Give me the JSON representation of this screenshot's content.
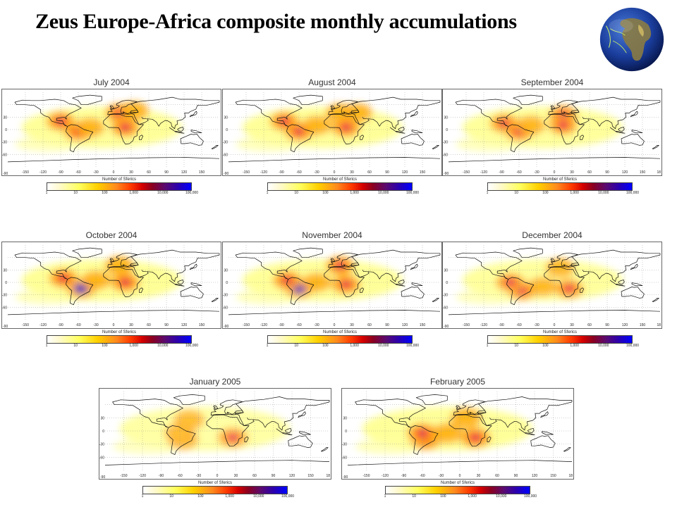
{
  "slide": {
    "title": "Zeus Europe-Africa composite monthly accumulations"
  },
  "globe": {
    "name": "earth-globe"
  },
  "colorbar": {
    "label": "Number of Sferics",
    "ticks": [
      "1",
      "10",
      "100",
      "1,000",
      "10,000",
      "100,000"
    ],
    "colors": [
      "#ffffff",
      "#ffff60",
      "#ffd000",
      "#ff8a1e",
      "#ff3a00",
      "#d40000",
      "#5a0a70",
      "#0000ff"
    ]
  },
  "axes": {
    "x_ticks": [
      "-150",
      "-120",
      "-90",
      "-60",
      "-30",
      "0",
      "30",
      "60",
      "90",
      "120",
      "150"
    ],
    "y_ticks": [
      "30",
      "0",
      "-30",
      "-60"
    ],
    "corner_label": "-90",
    "end_label": "18"
  },
  "chart_data": [
    {
      "type": "heatmap",
      "title": "July 2004",
      "intensity": 0.85,
      "hotspots": [
        [
          -90,
          20,
          "high"
        ],
        [
          -60,
          -5,
          "high"
        ],
        [
          10,
          40,
          "high"
        ],
        [
          20,
          5,
          "high"
        ],
        [
          35,
          45,
          "mid"
        ],
        [
          -40,
          5,
          "mid"
        ]
      ]
    },
    {
      "type": "heatmap",
      "title": "August 2004",
      "intensity": 0.85,
      "hotspots": [
        [
          -85,
          20,
          "high"
        ],
        [
          -60,
          -5,
          "high"
        ],
        [
          10,
          40,
          "mid"
        ],
        [
          20,
          5,
          "high"
        ],
        [
          40,
          40,
          "mid"
        ],
        [
          -30,
          10,
          "mid"
        ]
      ]
    },
    {
      "type": "heatmap",
      "title": "September 2004",
      "intensity": 0.8,
      "hotspots": [
        [
          -85,
          15,
          "high"
        ],
        [
          -60,
          -5,
          "high"
        ],
        [
          15,
          35,
          "high"
        ],
        [
          15,
          10,
          "high"
        ],
        [
          -40,
          10,
          "mid"
        ]
      ]
    },
    {
      "type": "heatmap",
      "title": "October 2004",
      "intensity": 0.9,
      "hotspots": [
        [
          -85,
          10,
          "high"
        ],
        [
          -55,
          -15,
          "veryhigh"
        ],
        [
          10,
          40,
          "mid"
        ],
        [
          20,
          0,
          "high"
        ],
        [
          -30,
          5,
          "mid"
        ]
      ]
    },
    {
      "type": "heatmap",
      "title": "November 2004",
      "intensity": 0.85,
      "hotspots": [
        [
          -60,
          -15,
          "veryhigh"
        ],
        [
          -80,
          5,
          "high"
        ],
        [
          20,
          -5,
          "high"
        ],
        [
          10,
          40,
          "high"
        ],
        [
          -30,
          0,
          "mid"
        ]
      ]
    },
    {
      "type": "heatmap",
      "title": "December 2004",
      "intensity": 0.75,
      "hotspots": [
        [
          -55,
          -20,
          "high"
        ],
        [
          -75,
          0,
          "high"
        ],
        [
          25,
          -15,
          "high"
        ],
        [
          10,
          35,
          "mid"
        ],
        [
          -20,
          -10,
          "mid"
        ]
      ]
    },
    {
      "type": "heatmap",
      "title": "January 2005",
      "intensity": 0.6,
      "hotspots": [
        [
          -55,
          -20,
          "mid"
        ],
        [
          -60,
          -5,
          "mid"
        ],
        [
          25,
          -15,
          "high"
        ],
        [
          -45,
          25,
          "mid"
        ]
      ]
    },
    {
      "type": "heatmap",
      "title": "February 2005",
      "intensity": 0.85,
      "hotspots": [
        [
          -55,
          -20,
          "high"
        ],
        [
          -60,
          -5,
          "high"
        ],
        [
          25,
          -15,
          "high"
        ],
        [
          10,
          30,
          "mid"
        ],
        [
          -20,
          -5,
          "mid"
        ]
      ]
    }
  ]
}
